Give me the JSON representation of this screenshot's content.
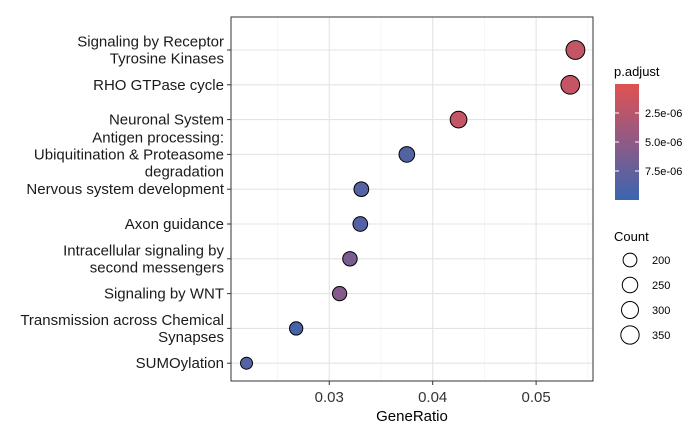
{
  "chart_data": {
    "type": "scatter",
    "title": "",
    "xlabel": "GeneRatio",
    "ylabel": "",
    "xlim": [
      0.0205,
      0.0555
    ],
    "x_ticks": [
      {
        "value": 0.03,
        "label": "0.03"
      },
      {
        "value": 0.04,
        "label": "0.04"
      },
      {
        "value": 0.05,
        "label": "0.05"
      }
    ],
    "grid": true,
    "categories": [
      [
        "Signaling by Receptor",
        "Tyrosine Kinases"
      ],
      [
        "RHO GTPase cycle"
      ],
      [
        "Neuronal System"
      ],
      [
        "Antigen processing:",
        "Ubiquitination & Proteasome",
        "degradation"
      ],
      [
        "Nervous system development"
      ],
      [
        "Axon guidance"
      ],
      [
        "Intracellular signaling by",
        "second messengers"
      ],
      [
        "Signaling by WNT"
      ],
      [
        "Transmission across Chemical",
        "Synapses"
      ],
      [
        "SUMOylation"
      ]
    ],
    "points": [
      {
        "gene_ratio": 0.0538,
        "count": 370,
        "p_adjust": 1.8e-06
      },
      {
        "gene_ratio": 0.0533,
        "count": 365,
        "p_adjust": 1.6e-06
      },
      {
        "gene_ratio": 0.0425,
        "count": 290,
        "p_adjust": 1.7e-06
      },
      {
        "gene_ratio": 0.0375,
        "count": 255,
        "p_adjust": 8.6e-06
      },
      {
        "gene_ratio": 0.0331,
        "count": 225,
        "p_adjust": 8.4e-06
      },
      {
        "gene_ratio": 0.033,
        "count": 224,
        "p_adjust": 8.5e-06
      },
      {
        "gene_ratio": 0.032,
        "count": 218,
        "p_adjust": 6.3e-06
      },
      {
        "gene_ratio": 0.031,
        "count": 212,
        "p_adjust": 5.6e-06
      },
      {
        "gene_ratio": 0.0268,
        "count": 183,
        "p_adjust": 9.2e-06
      },
      {
        "gene_ratio": 0.022,
        "count": 150,
        "p_adjust": 8.4e-06
      }
    ],
    "color_legend": {
      "title": "p.adjust",
      "low_value_color": "#e05252",
      "high_value_color": "#3a66b0",
      "range": [
        0,
        1e-05
      ],
      "ticks": [
        {
          "value": 2.5e-06,
          "label": "2.5e-06"
        },
        {
          "value": 5e-06,
          "label": "5.0e-06"
        },
        {
          "value": 7.5e-06,
          "label": "7.5e-06"
        }
      ]
    },
    "size_legend": {
      "title": "Count",
      "entries": [
        {
          "value": 200,
          "label": "200"
        },
        {
          "value": 250,
          "label": "250"
        },
        {
          "value": 300,
          "label": "300"
        },
        {
          "value": 350,
          "label": "350"
        }
      ]
    },
    "legend_position": "right"
  }
}
